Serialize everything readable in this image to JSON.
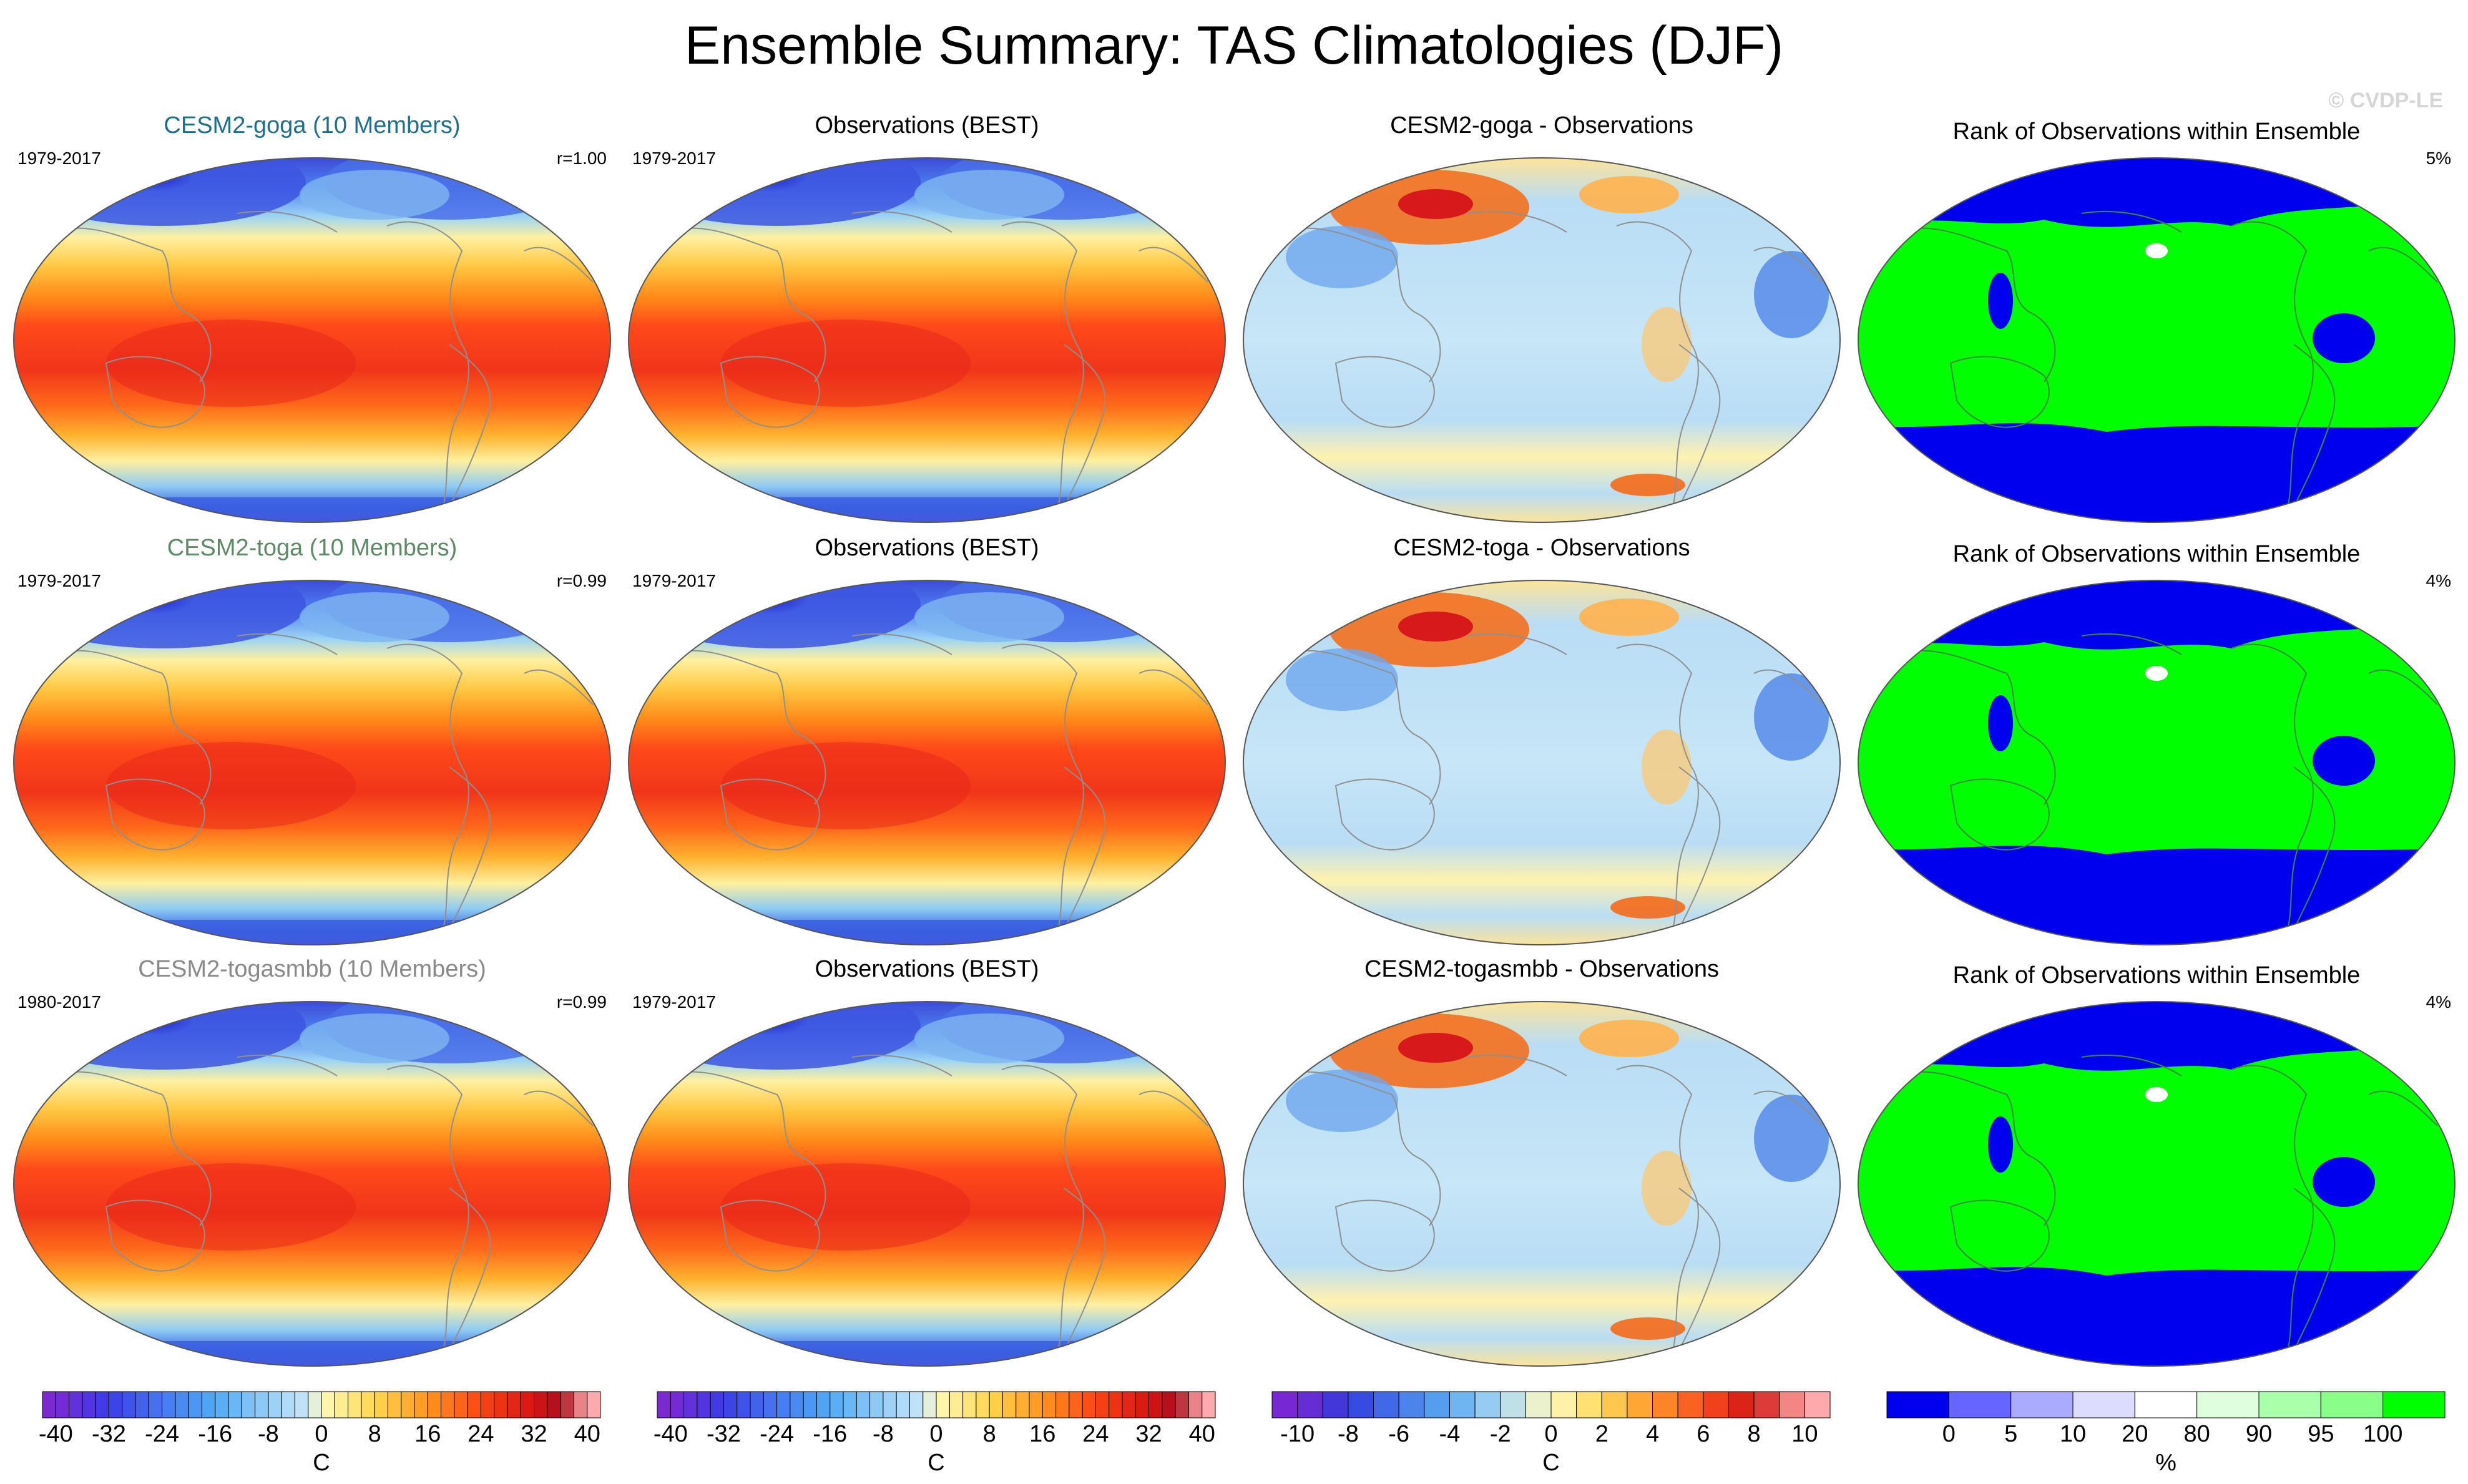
{
  "figure": {
    "title": "Ensemble Summary: TAS Climatologies (DJF)",
    "watermark": "© CVDP-LE"
  },
  "colors": {
    "row_title_goga": "#1f6f8b",
    "row_title_toga": "#5f8a68",
    "row_title_togasmbb": "#8a8a8a",
    "land_outline": "#8f8f8f",
    "rank_low": "#0000ee",
    "rank_high": "#00ff00"
  },
  "rows": [
    {
      "model": {
        "title": "CESM2-goga (10 Members)",
        "years": "1979-2017",
        "r": "r=1.00"
      },
      "obs": {
        "title": "Observations (BEST)",
        "years": "1979-2017"
      },
      "diff": {
        "title": "CESM2-goga - Observations"
      },
      "rank": {
        "title": "Rank of Observations within Ensemble",
        "pct": "5%"
      }
    },
    {
      "model": {
        "title": "CESM2-toga (10 Members)",
        "years": "1979-2017",
        "r": "r=0.99"
      },
      "obs": {
        "title": "Observations (BEST)",
        "years": "1979-2017"
      },
      "diff": {
        "title": "CESM2-toga - Observations"
      },
      "rank": {
        "title": "Rank of Observations within Ensemble",
        "pct": "4%"
      }
    },
    {
      "model": {
        "title": "CESM2-togasmbb (10 Members)",
        "years": "1980-2017",
        "r": "r=0.99"
      },
      "obs": {
        "title": "Observations (BEST)",
        "years": "1979-2017"
      },
      "diff": {
        "title": "CESM2-togasmbb - Observations"
      },
      "rank": {
        "title": "Rank of Observations within Ensemble",
        "pct": "4%"
      }
    }
  ],
  "chart_data": [
    {
      "type": "heatmap",
      "name": "climatology colorbar",
      "unit": "C",
      "levels": [
        -40,
        -38,
        -36,
        -34,
        -32,
        -30,
        -28,
        -26,
        -24,
        -22,
        -20,
        -18,
        -16,
        -14,
        -12,
        -10,
        -8,
        -6,
        -4,
        -2,
        0,
        2,
        4,
        6,
        8,
        10,
        12,
        14,
        16,
        18,
        20,
        22,
        24,
        26,
        28,
        30,
        32,
        34,
        36,
        38,
        40
      ],
      "tick_labels": [
        "-40",
        "-32",
        "-24",
        "-16",
        "-8",
        "0",
        "8",
        "16",
        "24",
        "32",
        "40"
      ],
      "tick_values": [
        -40,
        -32,
        -24,
        -16,
        -8,
        0,
        8,
        16,
        24,
        32,
        40
      ],
      "range": [
        -40,
        40
      ]
    },
    {
      "type": "heatmap",
      "name": "difference colorbar",
      "unit": "C",
      "levels": [
        -10,
        -9,
        -8,
        -7,
        -6,
        -5,
        -4,
        -3,
        -2,
        -1,
        0,
        1,
        2,
        3,
        4,
        5,
        6,
        7,
        8,
        9,
        10
      ],
      "tick_labels": [
        "-10",
        "-8",
        "-6",
        "-4",
        "-2",
        "0",
        "2",
        "4",
        "6",
        "8",
        "10"
      ],
      "tick_values": [
        -10,
        -8,
        -6,
        -4,
        -2,
        0,
        2,
        4,
        6,
        8,
        10
      ],
      "range": [
        -10,
        10
      ]
    },
    {
      "type": "heatmap",
      "name": "rank colorbar",
      "unit": "%",
      "levels": [
        0,
        5,
        10,
        20,
        80,
        90,
        95,
        100
      ],
      "tick_labels": [
        "0",
        "5",
        "10",
        "20",
        "80",
        "90",
        "95",
        "100"
      ],
      "bin_colors": [
        "#0000ee",
        "#6666ff",
        "#aaaaff",
        "#dcdcff",
        "#ffffff",
        "#ddffdd",
        "#aaffaa",
        "#88ff88",
        "#00ff00"
      ]
    }
  ]
}
